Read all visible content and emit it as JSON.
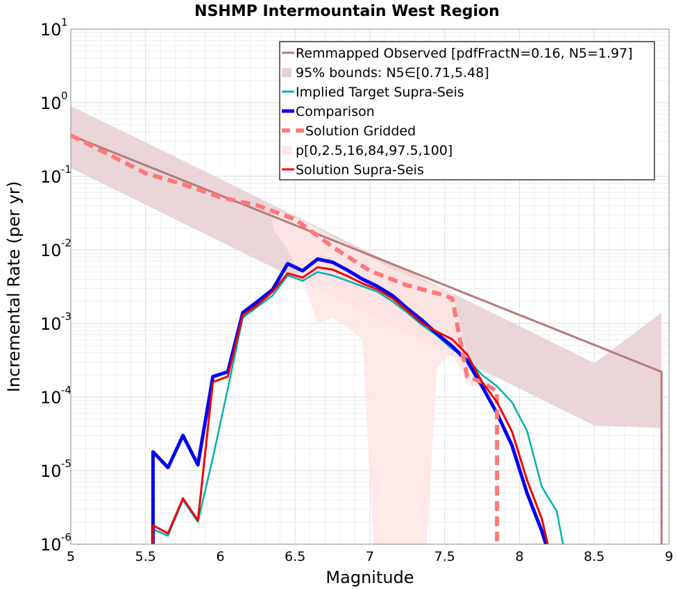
{
  "chart_data": {
    "type": "line",
    "title": "NSHMP Intermountain West Region",
    "xlabel": "Magnitude",
    "ylabel": "Incremental Rate (per yr)",
    "xlim": [
      5,
      9
    ],
    "ylim": [
      1e-06,
      10
    ],
    "yscale": "log",
    "grid": true,
    "legend_position": "top-right",
    "xticks": [
      "5",
      "5.5",
      "6",
      "6.5",
      "7",
      "7.5",
      "8",
      "8.5",
      "9"
    ],
    "yticks": [
      {
        "base": "10",
        "exp": "-6"
      },
      {
        "base": "10",
        "exp": "-5"
      },
      {
        "base": "10",
        "exp": "-4"
      },
      {
        "base": "10",
        "exp": "-3"
      },
      {
        "base": "10",
        "exp": "-2"
      },
      {
        "base": "10",
        "exp": "-1"
      },
      {
        "base": "10",
        "exp": "0"
      },
      {
        "base": "10",
        "exp": "1"
      }
    ],
    "bands": [
      {
        "name": "95% bounds: N5∈[0.71,5.48]",
        "color": "#e6cfd2",
        "x": [
          5.0,
          5.5,
          6.0,
          6.5,
          7.0,
          7.5,
          8.0,
          8.5,
          8.95
        ],
        "lower": [
          0.13,
          0.041,
          0.013,
          0.0041,
          0.0013,
          0.00041,
          0.00013,
          4.1e-05,
          3.8e-05
        ],
        "upper": [
          0.9,
          0.29,
          0.092,
          0.029,
          0.0092,
          0.0029,
          0.00092,
          0.00029,
          0.0014
        ]
      },
      {
        "name": "p[0,2.5,16,84,97.5,100]",
        "color": "#ffe6e6",
        "x": [
          6.35,
          6.45,
          6.55,
          6.65,
          6.75,
          6.85,
          6.95,
          7.05,
          7.15,
          7.25,
          7.35,
          7.45,
          7.55,
          7.65,
          7.75
        ],
        "lower": [
          0.02,
          0.01,
          0.004,
          0.001,
          0.0012,
          0.0009,
          0.0006,
          1e-07,
          1e-07,
          1e-07,
          1e-07,
          0.00025,
          0.0004,
          0.00015,
          0.00013
        ],
        "upper": [
          0.035,
          0.03,
          0.025,
          0.02,
          0.015,
          0.012,
          0.009,
          0.007,
          0.0055,
          0.0045,
          0.0038,
          0.0032,
          0.0028,
          0.0004,
          0.0002
        ]
      }
    ],
    "series": [
      {
        "name": "Remmapped Observed [pdfFractN=0.16, N5=1.97]",
        "color": "#b87878",
        "width": 3,
        "dash": "",
        "x": [
          5.0,
          8.95,
          8.95
        ],
        "y": [
          0.36,
          0.00022,
          1e-07
        ]
      },
      {
        "name": "Implied Target Supra-Seis",
        "color": "#00b0b0",
        "width": 2.5,
        "dash": "",
        "x": [
          5.55,
          5.55,
          5.65,
          5.75,
          5.85,
          5.95,
          6.05,
          6.15,
          6.25,
          6.35,
          6.45,
          6.55,
          6.65,
          6.75,
          6.85,
          6.95,
          7.05,
          7.15,
          7.25,
          7.35,
          7.45,
          7.55,
          7.65,
          7.75,
          7.85,
          7.95,
          8.05,
          8.15,
          8.25,
          8.3
        ],
        "y": [
          1e-07,
          1.6e-06,
          1.3e-06,
          4e-06,
          2e-06,
          1.5e-05,
          0.00013,
          0.0012,
          0.0017,
          0.0024,
          0.0045,
          0.0038,
          0.005,
          0.0045,
          0.0038,
          0.0032,
          0.0027,
          0.002,
          0.0014,
          0.00095,
          0.00068,
          0.00045,
          0.00033,
          0.0002,
          0.00014,
          8.5e-05,
          3.5e-05,
          6e-06,
          2.8e-06,
          8e-07
        ]
      },
      {
        "name": "Comparison",
        "color": "#0000ee",
        "width": 5,
        "dash": "",
        "x": [
          5.55,
          5.55,
          5.65,
          5.75,
          5.85,
          5.95,
          6.05,
          6.15,
          6.25,
          6.35,
          6.45,
          6.55,
          6.65,
          6.75,
          6.85,
          6.95,
          7.05,
          7.15,
          7.25,
          7.35,
          7.45,
          7.55,
          7.65,
          7.75,
          7.85,
          7.95,
          8.05,
          8.15,
          8.2
        ],
        "y": [
          1e-07,
          1.8e-05,
          1.1e-05,
          3e-05,
          1.2e-05,
          0.00019,
          0.00022,
          0.0014,
          0.002,
          0.0029,
          0.0065,
          0.0052,
          0.0075,
          0.0068,
          0.0053,
          0.004,
          0.0032,
          0.0024,
          0.0016,
          0.0011,
          0.00072,
          0.00049,
          0.00031,
          0.00014,
          6e-05,
          2.2e-05,
          5e-06,
          1.5e-06,
          7e-07
        ]
      },
      {
        "name": "Solution Gridded",
        "color": "#ff7878",
        "width": 6,
        "dash": "14,8",
        "x": [
          5.0,
          5.25,
          5.5,
          5.75,
          6.0,
          6.25,
          6.5,
          6.75,
          7.0,
          7.25,
          7.5,
          7.55,
          7.65,
          7.75,
          7.85,
          7.85
        ],
        "y": [
          0.36,
          0.2,
          0.11,
          0.078,
          0.052,
          0.04,
          0.026,
          0.011,
          0.0052,
          0.0033,
          0.0024,
          0.0022,
          0.00019,
          0.00016,
          0.00012,
          1e-07
        ]
      },
      {
        "name": "Solution Supra-Seis",
        "color": "#ee0000",
        "width": 3,
        "dash": "",
        "x": [
          5.55,
          5.55,
          5.65,
          5.75,
          5.85,
          5.95,
          6.05,
          6.15,
          6.25,
          6.35,
          6.45,
          6.55,
          6.65,
          6.75,
          6.85,
          6.95,
          7.05,
          7.15,
          7.25,
          7.35,
          7.45,
          7.55,
          7.65,
          7.75,
          7.85,
          7.95,
          8.05,
          8.15,
          8.2
        ],
        "y": [
          1e-07,
          1.8e-06,
          1.4e-06,
          4.2e-06,
          2.1e-06,
          0.00016,
          0.00019,
          0.0013,
          0.0018,
          0.0027,
          0.0048,
          0.0042,
          0.0058,
          0.0054,
          0.0044,
          0.0035,
          0.0029,
          0.0022,
          0.0015,
          0.001,
          0.00077,
          0.00061,
          0.00038,
          0.00016,
          8.5e-05,
          3.4e-05,
          7.5e-06,
          2.2e-06,
          8e-07
        ]
      }
    ],
    "legend": [
      {
        "label": "Remmapped Observed [pdfFractN=0.16, N5=1.97]",
        "color": "#b87878",
        "kind": "line",
        "width": 3,
        "dash": ""
      },
      {
        "label": "95% bounds: N5∈[0.71,5.48]",
        "color": "#e6cfd2",
        "kind": "box",
        "width": 0,
        "dash": ""
      },
      {
        "label": "Implied Target Supra-Seis",
        "color": "#00b0b0",
        "kind": "line",
        "width": 3,
        "dash": ""
      },
      {
        "label": "Comparison",
        "color": "#0000ee",
        "kind": "line",
        "width": 5,
        "dash": ""
      },
      {
        "label": "Solution Gridded",
        "color": "#ff7878",
        "kind": "line",
        "width": 6,
        "dash": "12,8"
      },
      {
        "label": "p[0,2.5,16,84,97.5,100]",
        "color": "#ffe6e6",
        "kind": "box",
        "width": 0,
        "dash": ""
      },
      {
        "label": "Solution Supra-Seis",
        "color": "#ee0000",
        "kind": "line",
        "width": 3,
        "dash": ""
      }
    ]
  }
}
